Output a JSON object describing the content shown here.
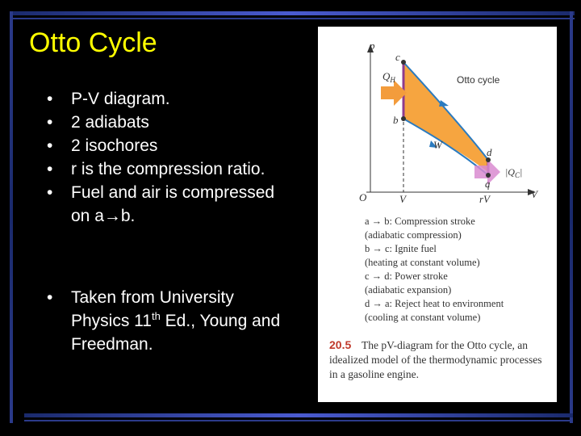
{
  "slide": {
    "title": "Otto Cycle",
    "bullets": [
      "P-V diagram.",
      "2 adiabats",
      "2 isochores",
      "r is the compression ratio.",
      "Fuel and air is compressed on a→b."
    ],
    "source": {
      "pre": "Taken from University Physics 11",
      "sup": "th",
      "post": " Ed., Young and Freedman."
    }
  },
  "figure": {
    "axis_p": "p",
    "axis_v": "V",
    "origin": "O",
    "tick_v": "V",
    "tick_rv": "rV",
    "point_a": "a",
    "point_b": "b",
    "point_c": "c",
    "point_d": "d",
    "label_qh": "Q",
    "label_qh_sub": "H",
    "label_qc": "|Q",
    "label_qc_sub": "C",
    "label_qc_end": "|",
    "label_w": "W",
    "cycle_name": "Otto cycle",
    "steps": [
      "a → b: Compression stroke",
      "(adiabatic compression)",
      "b → c: Ignite fuel",
      "(heating at constant volume)",
      "c → d: Power stroke",
      "(adiabatic expansion)",
      "d → a: Reject heat to environment",
      "(cooling at constant volume)"
    ],
    "caption_num": "20.5",
    "caption": "The pV-diagram for the Otto cycle, an idealized model of the thermodynamic processes in a gasoline engine.",
    "colors": {
      "fill": "#f6a540",
      "arrow_in": "#f39c3c",
      "arrow_out": "#d98bd0",
      "isochore": "#8e3b8e",
      "adiabat": "#2b7bbf"
    }
  }
}
